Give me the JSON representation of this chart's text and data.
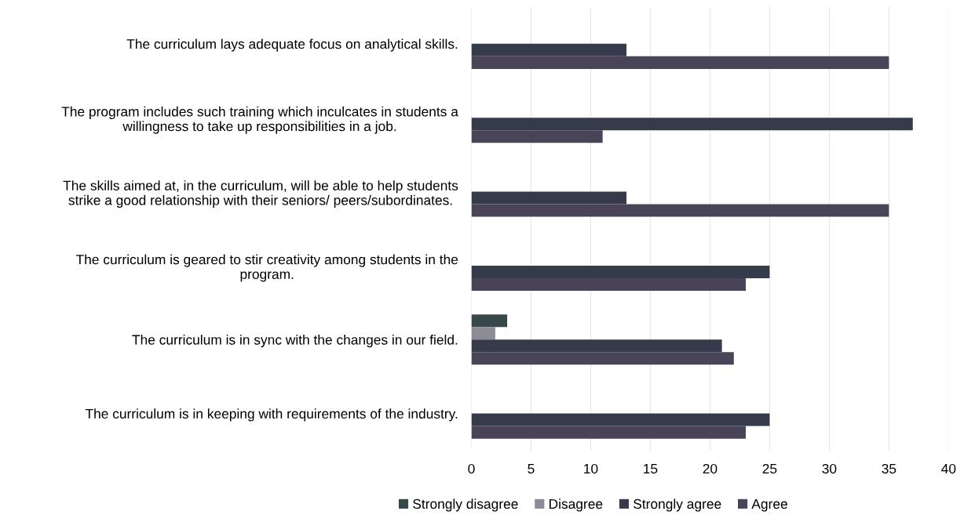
{
  "chart_data": {
    "type": "bar",
    "orientation": "horizontal",
    "categories": [
      "The curriculum lays adequate focus on analytical skills.",
      "The program includes such training which inculcates in students a\nwillingness to take up responsibilities in a job.",
      "The skills aimed at, in the curriculum, will be able to help students\nstrike a good relationship with their seniors/ peers/subordinates.",
      "The curriculum is geared to stir creativity among students in the\nprogram.",
      "The curriculum is in sync with the changes in our field.",
      "The curriculum is in keeping with requirements of the industry."
    ],
    "series": [
      {
        "name": "Strongly disagree",
        "color": "#37484b",
        "values": [
          0,
          0,
          0,
          0,
          3,
          0
        ]
      },
      {
        "name": "Disagree",
        "color": "#8d8c95",
        "values": [
          0,
          0,
          0,
          0,
          2,
          0
        ]
      },
      {
        "name": "Strongly agree",
        "color": "#363b4b",
        "values": [
          13,
          37,
          13,
          25,
          21,
          25
        ]
      },
      {
        "name": "Agree",
        "color": "#4a4459",
        "values": [
          35,
          11,
          35,
          23,
          22,
          23
        ]
      }
    ],
    "xlim": [
      0,
      40
    ],
    "xticks": [
      0,
      5,
      10,
      15,
      20,
      25,
      30,
      35,
      40
    ],
    "grid": "x",
    "legend": "bottom"
  }
}
